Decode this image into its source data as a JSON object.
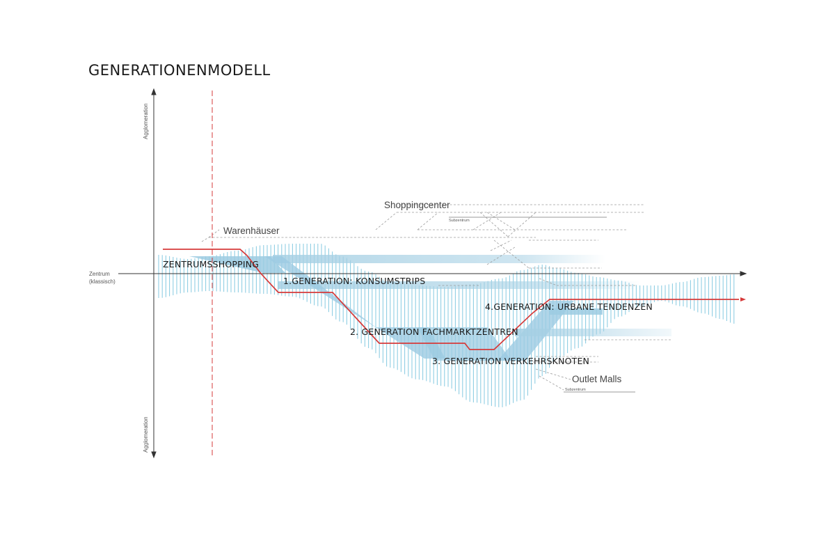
{
  "title": "GENERATIONENMODELL",
  "axis": {
    "vertical_top_label": "Agglomeration",
    "vertical_bottom_label": "Agglomeration",
    "center_label": "Zentrum",
    "center_sublabel": "(klassisch)"
  },
  "labels": {
    "warenhaeuser": "Warenhäuser",
    "shoppingcenter": "Shoppingcenter",
    "subzentrum_top": "Subzentrum",
    "outlet_malls": "Outlet Malls",
    "subzentrum_bottom": "Subzentrum"
  },
  "generations": {
    "zentrum": "ZENTRUMSSHOPPING",
    "gen1": "1.GENERATION: KONSUMSTRIPS",
    "gen2": "2. GENERATION FACHMARKTZENTREN",
    "gen3": "3. GENERATION VERKEHRSKNOTEN",
    "gen4": "4.GENERATION: URBANE TENDENZEN"
  },
  "colors": {
    "hatch": "#8fcde3",
    "band": "#a6d0e4",
    "red": "#d63a3a",
    "axis": "#333333",
    "dashed": "#9a9a9a"
  }
}
